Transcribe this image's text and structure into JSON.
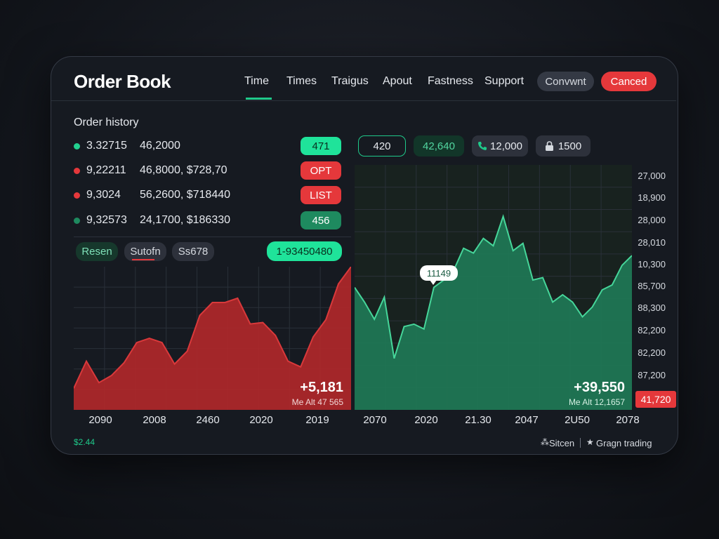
{
  "header": {
    "title": "Order Book",
    "nav": [
      "Time",
      "Times",
      "Traigus",
      "Apout",
      "Fastness",
      "Support"
    ],
    "buttons": [
      "Convwnt",
      "Canced"
    ]
  },
  "order_history": {
    "title": "Order history",
    "rows": [
      {
        "id": "3.32715",
        "detail": "46,2000",
        "badge": "471",
        "color": "#22d08f"
      },
      {
        "id": "9,22211",
        "detail": "46,8000, $728,70",
        "badge": "OPT",
        "color": "#e5383b"
      },
      {
        "id": "9,3024",
        "detail": "56,2600, $718440",
        "badge": "LIST",
        "color": "#e5383b"
      },
      {
        "id": "9,32573",
        "detail": "24,1700, $186330",
        "badge": "456",
        "color": "#1e8a5f"
      }
    ]
  },
  "tabs": [
    "Resen",
    "Sutofn",
    "Ss678"
  ],
  "tab_value": "1-93450480",
  "stats": [
    "420",
    "42,640",
    "12,000",
    "1500"
  ],
  "left_chart": {
    "type": "area",
    "color": "#b3282a",
    "values": [
      15,
      34,
      19,
      24,
      33,
      47,
      50,
      47,
      32,
      41,
      66,
      75,
      75,
      78,
      60,
      61,
      52,
      34,
      30,
      51,
      63,
      88,
      100
    ],
    "x_labels": [
      "2090",
      "2008",
      "2460",
      "2020",
      "2019"
    ],
    "change": "+5,181",
    "note": "Me Alt 47 565"
  },
  "right_chart": {
    "type": "area",
    "color": "#1f7a57",
    "values": [
      50,
      44,
      37,
      46,
      21,
      34,
      35,
      33,
      50,
      53,
      57,
      66,
      64,
      70,
      67,
      79,
      65,
      68,
      53,
      54,
      44,
      47,
      44,
      38,
      42,
      49,
      51,
      59,
      63
    ],
    "x_labels": [
      "2070",
      "2020",
      "21.30",
      "2047",
      "2U50",
      "2078"
    ],
    "change": "+39,550",
    "note": "Me Alt 12,1657",
    "tooltip": "11149",
    "y_labels": [
      "27,000",
      "18,900",
      "28,000",
      "28,010",
      "10,300",
      "85,700",
      "88,300",
      "82,200",
      "82,200",
      "87,200"
    ],
    "current": "41,720"
  },
  "footer": {
    "balance": "$2.44",
    "links": [
      "Sitcen",
      "Gragn trading"
    ]
  }
}
